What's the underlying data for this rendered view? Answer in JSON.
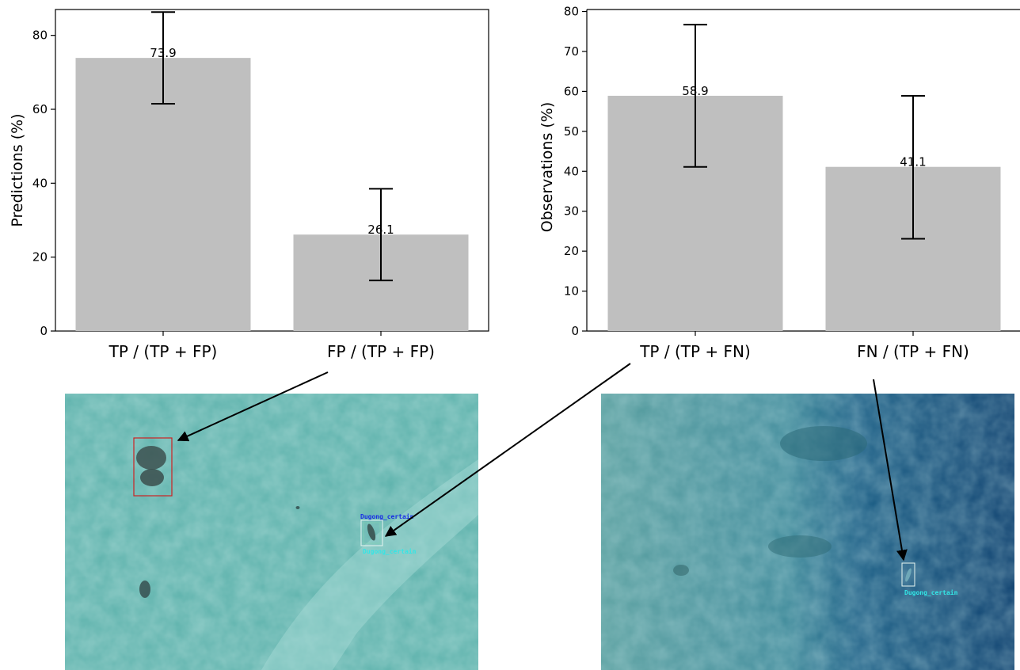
{
  "colors": {
    "bar": "#bfbfbf",
    "errorbar": "#000000",
    "shallow_water": "#5fb3ad",
    "deep_water": "#0f4f7d",
    "reef_water": "#4f9a9e",
    "fp_box": "#cc2222",
    "tp_box": "#e6f5f0",
    "label_blue": "#1a2ee6",
    "label_cyan": "#33e6e6"
  },
  "chart_data": [
    {
      "type": "bar",
      "categories": [
        "TP / (TP + FP)",
        "FP / (TP + FP)"
      ],
      "values": [
        73.9,
        26.1
      ],
      "data_labels": [
        "73.9",
        "26.1"
      ],
      "error": [
        [
          61.5,
          86.3
        ],
        [
          13.7,
          38.5
        ]
      ],
      "ylabel": "Predictions (%)",
      "xlabel": "",
      "title": "",
      "ylim": [
        0,
        87
      ],
      "yticks": [
        0,
        20,
        40,
        60,
        80
      ],
      "grid": false
    },
    {
      "type": "bar",
      "categories": [
        "TP / (TP + FN)",
        "FN / (TP + FN)"
      ],
      "values": [
        58.9,
        41.1
      ],
      "data_labels": [
        "58.9",
        "41.1"
      ],
      "error": [
        [
          41.1,
          76.7
        ],
        [
          23.1,
          58.9
        ]
      ],
      "ylabel": "Observations (%)",
      "xlabel": "",
      "title": "",
      "ylim": [
        0,
        80.5
      ],
      "yticks": [
        0,
        10,
        20,
        30,
        40,
        50,
        60,
        70,
        80
      ],
      "grid": false
    }
  ],
  "photos": {
    "left": {
      "tp_label_top": "Dugong_certain",
      "tp_label_bottom": "Dugong_certain"
    },
    "right": {
      "fn_label": "Dugong_certain"
    }
  }
}
